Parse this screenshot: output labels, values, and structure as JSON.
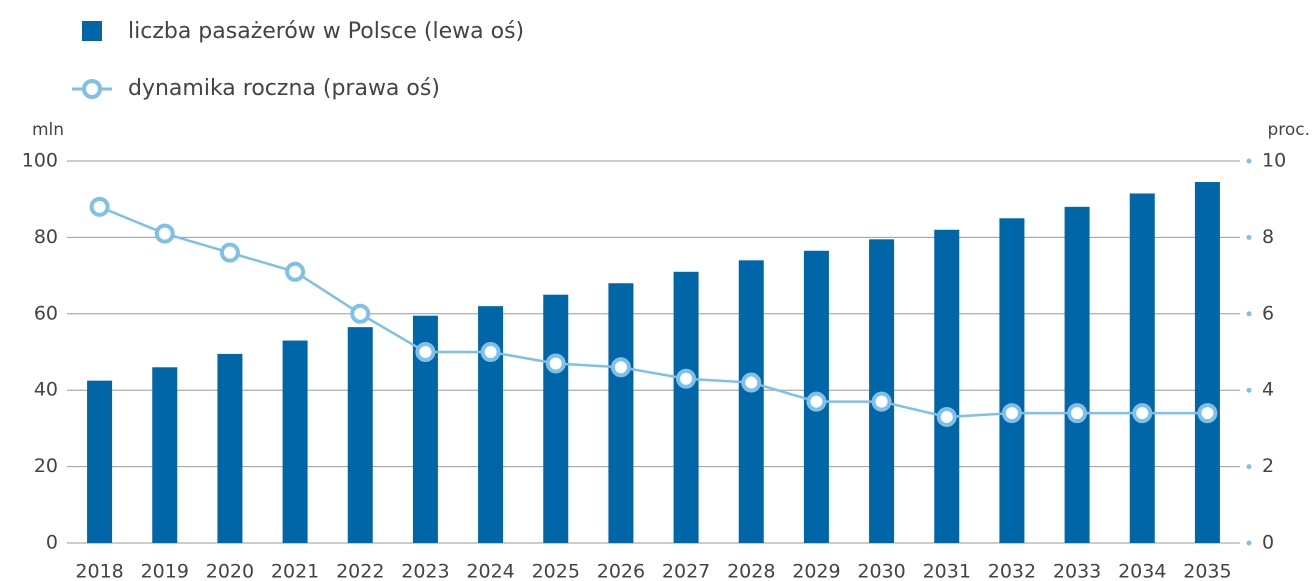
{
  "chart_data": {
    "type": "bar_line",
    "categories": [
      "2018",
      "2019",
      "2020",
      "2021",
      "2022",
      "2023",
      "2024",
      "2025",
      "2026",
      "2027",
      "2028",
      "2029",
      "2030",
      "2031",
      "2032",
      "2033",
      "2034",
      "2035"
    ],
    "series": [
      {
        "name": "liczba pasażerów w Polsce (lewa oś)",
        "color": "#0066a8",
        "type": "bar",
        "values": [
          42.5,
          46,
          49.5,
          53,
          56.5,
          59.5,
          62,
          65,
          68,
          71,
          74,
          76.5,
          79.5,
          82,
          85,
          88,
          91.5,
          94.5
        ]
      },
      {
        "name": "dynamika roczna (prawa oś)",
        "color": "#7fc0e8",
        "type": "line",
        "axis": "y2",
        "values": [
          8.8,
          8.1,
          7.6,
          7.1,
          6.0,
          5.0,
          5.0,
          4.7,
          4.6,
          4.3,
          4.2,
          3.7,
          3.7,
          3.3,
          3.4,
          3.4,
          3.4,
          3.4
        ]
      }
    ],
    "ylabel": "mln",
    "y2label": "proc.",
    "ylim": [
      0,
      100
    ],
    "yticks": [
      0,
      20,
      40,
      60,
      80,
      100
    ],
    "y2lim": [
      0,
      10
    ],
    "y2ticks": [
      0,
      2,
      4,
      6,
      8,
      10
    ],
    "grid": true
  }
}
